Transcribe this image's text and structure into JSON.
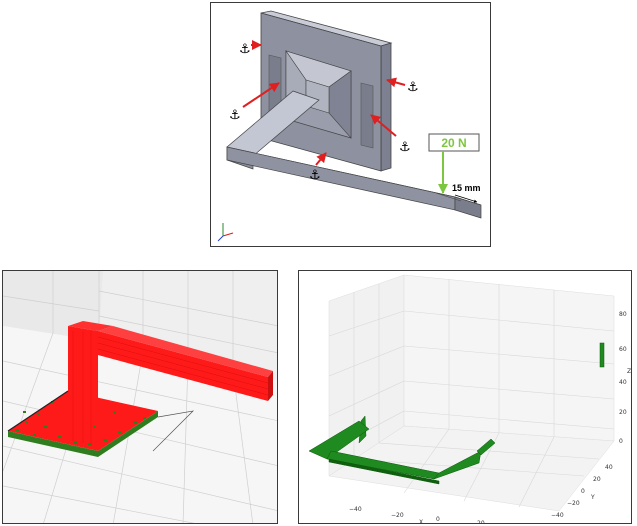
{
  "top_panel": {
    "force_label": "20 N",
    "dimension_label": "15 mm",
    "fixture_icon": "anchor-icon",
    "fixture_glyph": "⚓",
    "colors": {
      "force_arrow": "#7dc63f",
      "fixture_arrow": "#e02020",
      "part": "#b4b8c6"
    }
  },
  "bottom_left_panel": {
    "colors": {
      "structure": "#ff1a1a",
      "base": "#2f7d1e"
    }
  },
  "bottom_right_panel": {
    "x_axis_label": "X",
    "y_axis_label": "Y",
    "z_axis_label": "Z",
    "x_ticks": [
      "−40",
      "−20",
      "0",
      "20"
    ],
    "y_ticks": [
      "40",
      "20",
      "0",
      "−20",
      "−40"
    ],
    "z_ticks": [
      "80",
      "60",
      "40",
      "20",
      "0"
    ],
    "colors": {
      "structure": "#1f8a1f"
    }
  }
}
